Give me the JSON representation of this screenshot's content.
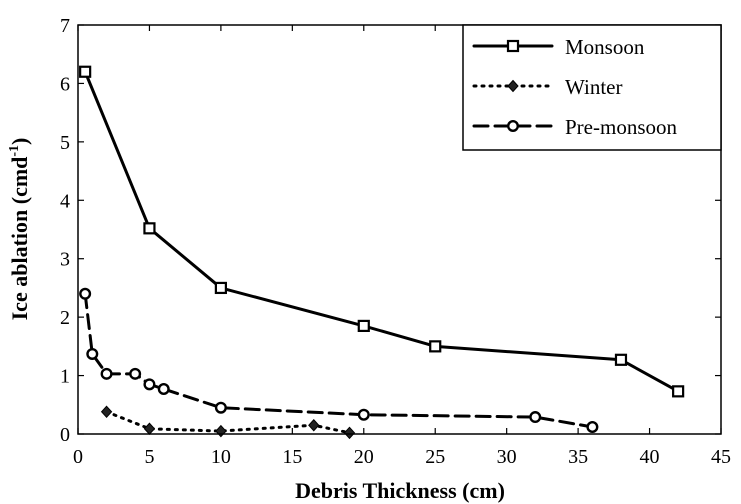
{
  "chart_data": {
    "type": "line",
    "xlabel": "Debris Thickness (cm)",
    "ylabel_main": "Ice ablation (cmd",
    "ylabel_sup": "-1",
    "ylabel_close": ")",
    "xlim": [
      0,
      45
    ],
    "ylim": [
      0,
      7
    ],
    "xticks": [
      "0",
      "5",
      "10",
      "15",
      "20",
      "25",
      "30",
      "35",
      "40",
      "45"
    ],
    "yticks": [
      "0",
      "1",
      "2",
      "3",
      "4",
      "5",
      "6",
      "7"
    ],
    "grid": false,
    "legend_position": "top-right",
    "series": [
      {
        "name": "Monsoon",
        "line_style": "solid",
        "marker": "square",
        "x": [
          0.5,
          5,
          10,
          20,
          25,
          38,
          42
        ],
        "y": [
          6.2,
          3.52,
          2.5,
          1.85,
          1.5,
          1.27,
          0.73
        ]
      },
      {
        "name": "Winter",
        "line_style": "dotted",
        "marker": "diamond",
        "x": [
          2,
          5,
          10,
          16.5,
          19
        ],
        "y": [
          0.38,
          0.09,
          0.05,
          0.15,
          0.02
        ]
      },
      {
        "name": "Pre-monsoon",
        "line_style": "dashed",
        "marker": "circle",
        "x": [
          0.5,
          1,
          2,
          4,
          5,
          6,
          10,
          20,
          32,
          36
        ],
        "y": [
          2.4,
          1.37,
          1.03,
          1.03,
          0.85,
          0.77,
          0.45,
          0.33,
          0.29,
          0.12
        ]
      }
    ]
  }
}
